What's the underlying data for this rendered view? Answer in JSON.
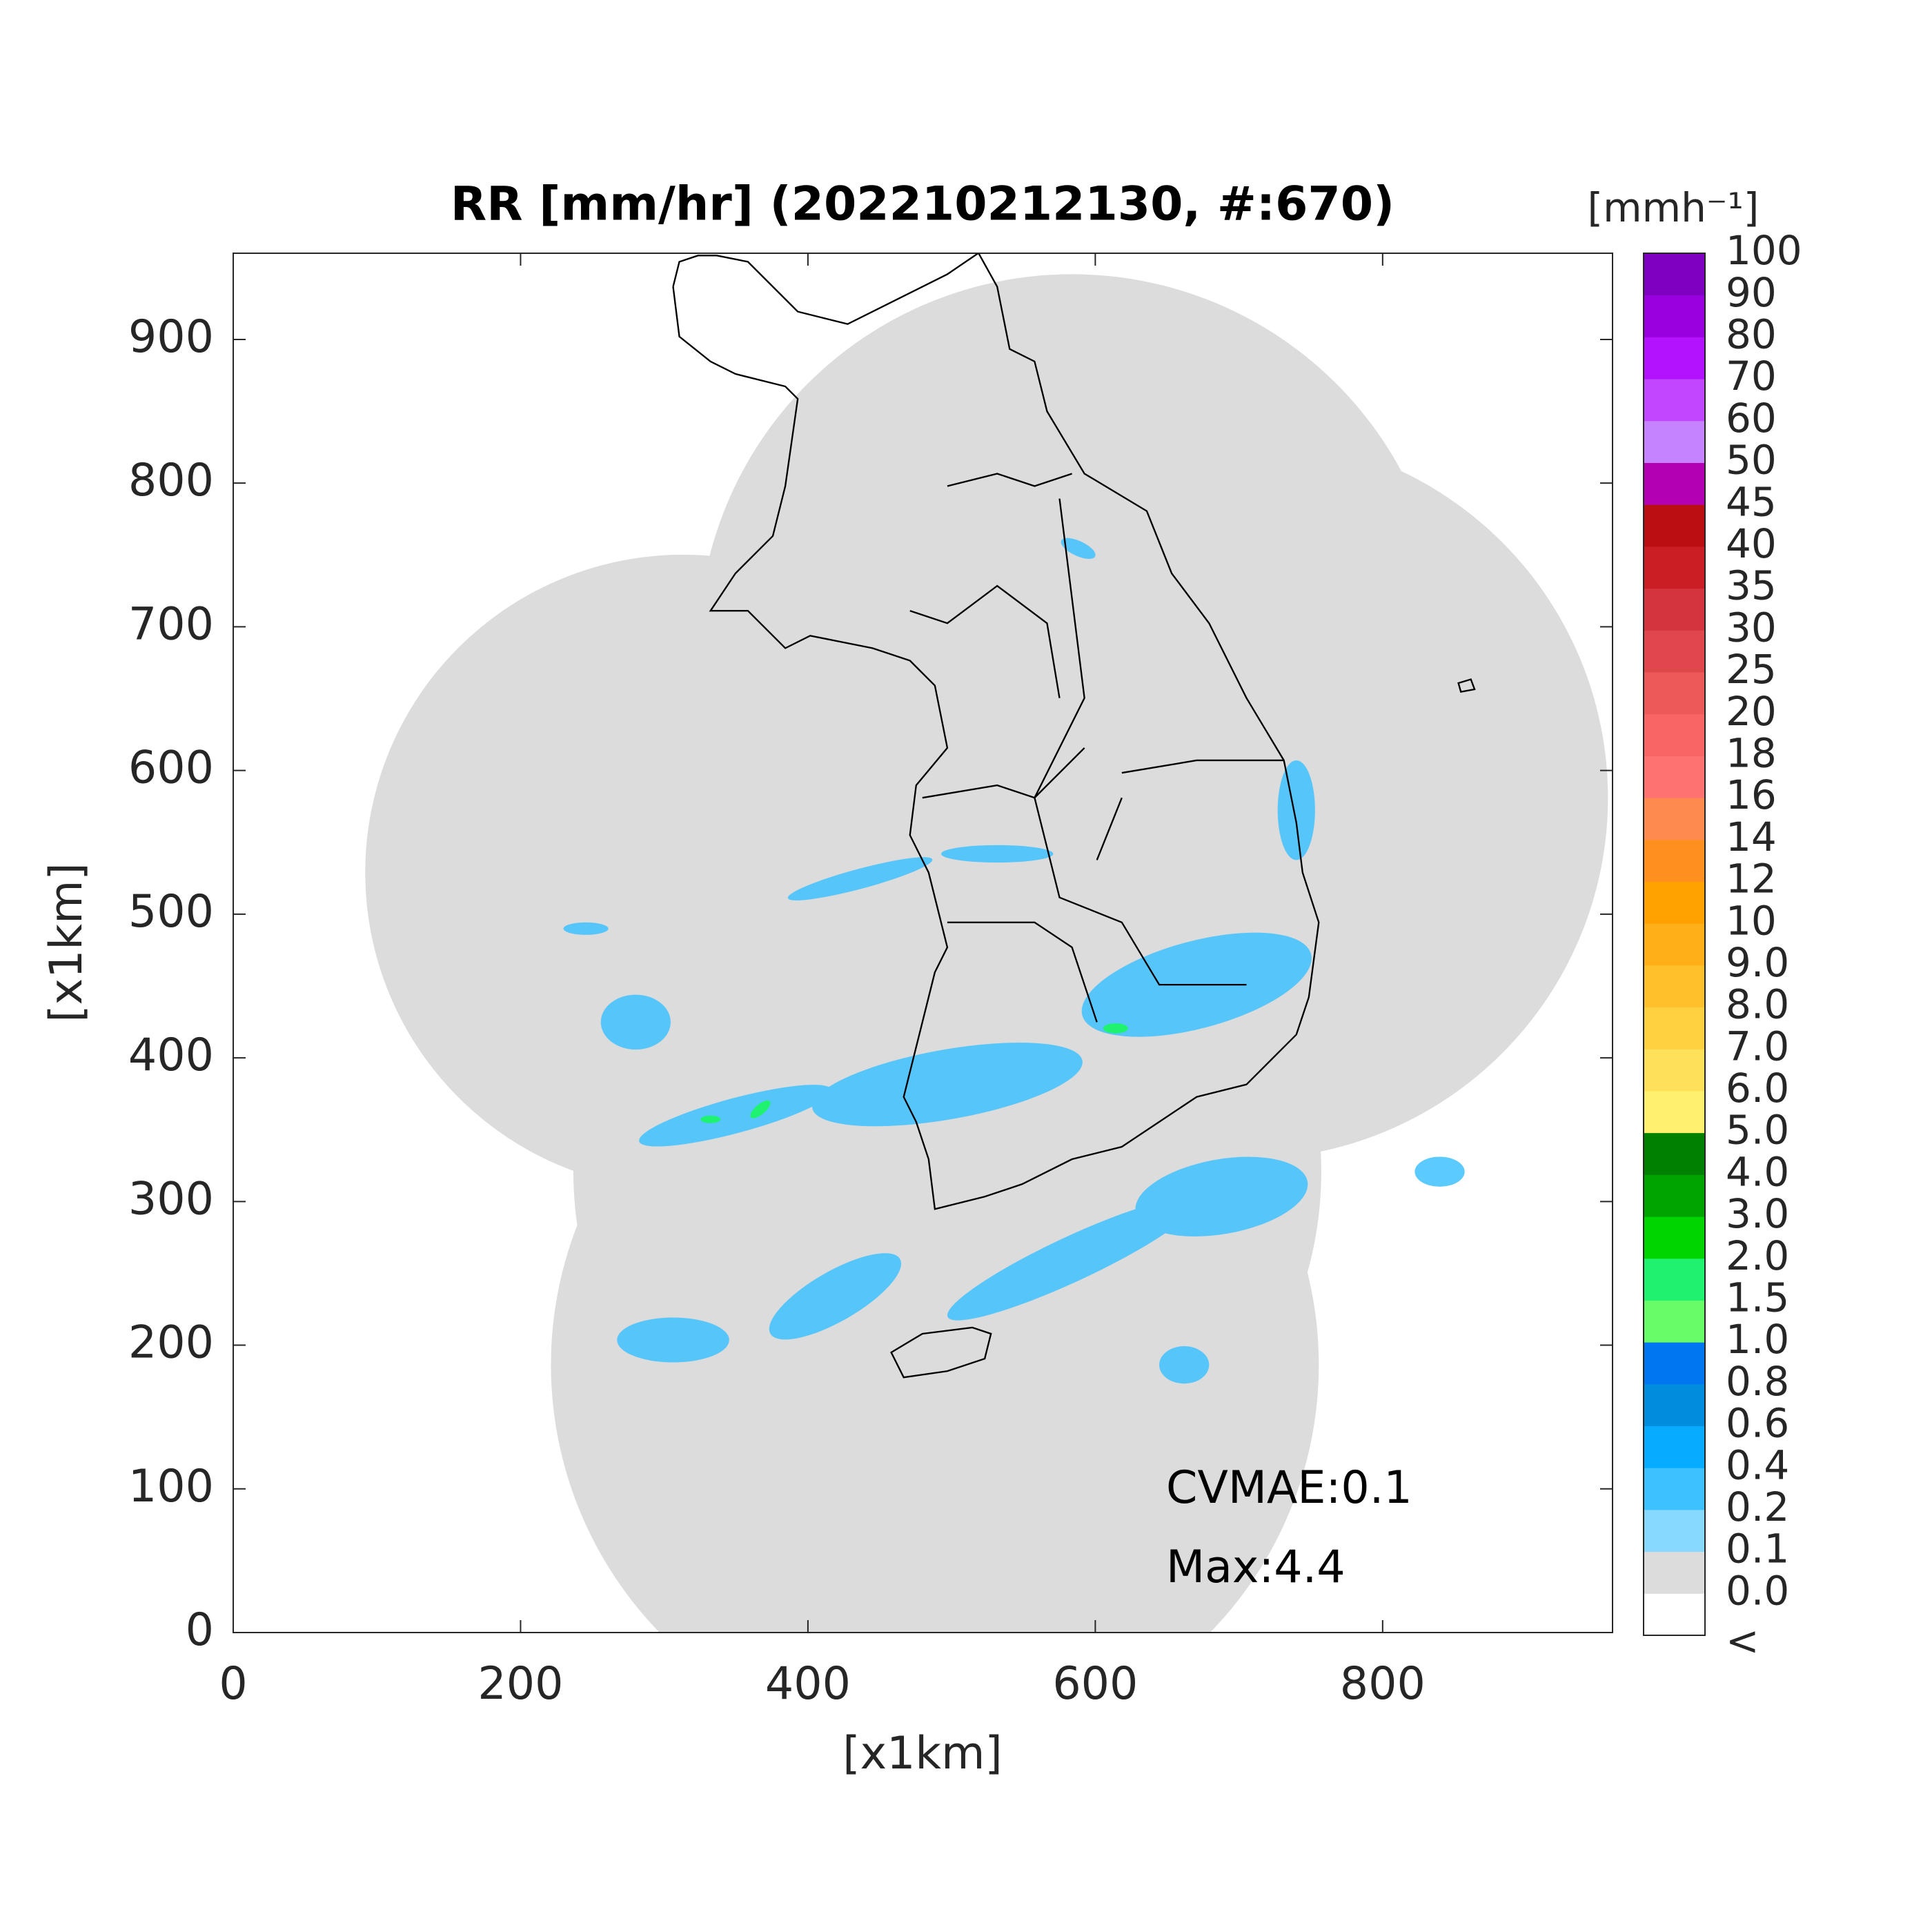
{
  "chart_data": {
    "type": "map",
    "title": "RR [mm/hr] (202210212130, #:670)",
    "xlabel": "[x1km]",
    "ylabel": "[x1km]",
    "xlim": [
      0,
      960
    ],
    "ylim": [
      0,
      960
    ],
    "xticks": [
      0,
      200,
      400,
      600,
      800
    ],
    "yticks": [
      0,
      100,
      200,
      300,
      400,
      500,
      600,
      700,
      800,
      900
    ],
    "annotations": [
      "CVMAE:0.1",
      "Max:4.4"
    ],
    "colorbar": {
      "label": "[mmh⁻¹]",
      "ticks": [
        "<",
        "0.0",
        "0.1",
        "0.2",
        "0.4",
        "0.6",
        "0.8",
        "1.0",
        "1.5",
        "2.0",
        "3.0",
        "4.0",
        "5.0",
        "6.0",
        "7.0",
        "8.0",
        "9.0",
        "10",
        "12",
        "14",
        "16",
        "18",
        "20",
        "25",
        "30",
        "35",
        "40",
        "45",
        "50",
        "60",
        "70",
        "80",
        "90",
        "100"
      ],
      "colors": [
        "#ffffff",
        "#dcdcdc",
        "#87d9ff",
        "#3ec1ff",
        "#07abff",
        "#008dde",
        "#0077f0",
        "#69fc69",
        "#1ef26e",
        "#00d500",
        "#00a400",
        "#008000",
        "#fff06e",
        "#ffe05a",
        "#ffd040",
        "#ffc02c",
        "#ffb018",
        "#ffa200",
        "#ff9020",
        "#ff8a50",
        "#fe7272",
        "#f96464",
        "#ed5858",
        "#e0474c",
        "#d4343d",
        "#c81e24",
        "#b90f12",
        "#b200b2",
        "#c583ff",
        "#c246ff",
        "#b312ff",
        "#9900e0",
        "#7f00c0",
        "#333333"
      ]
    }
  }
}
